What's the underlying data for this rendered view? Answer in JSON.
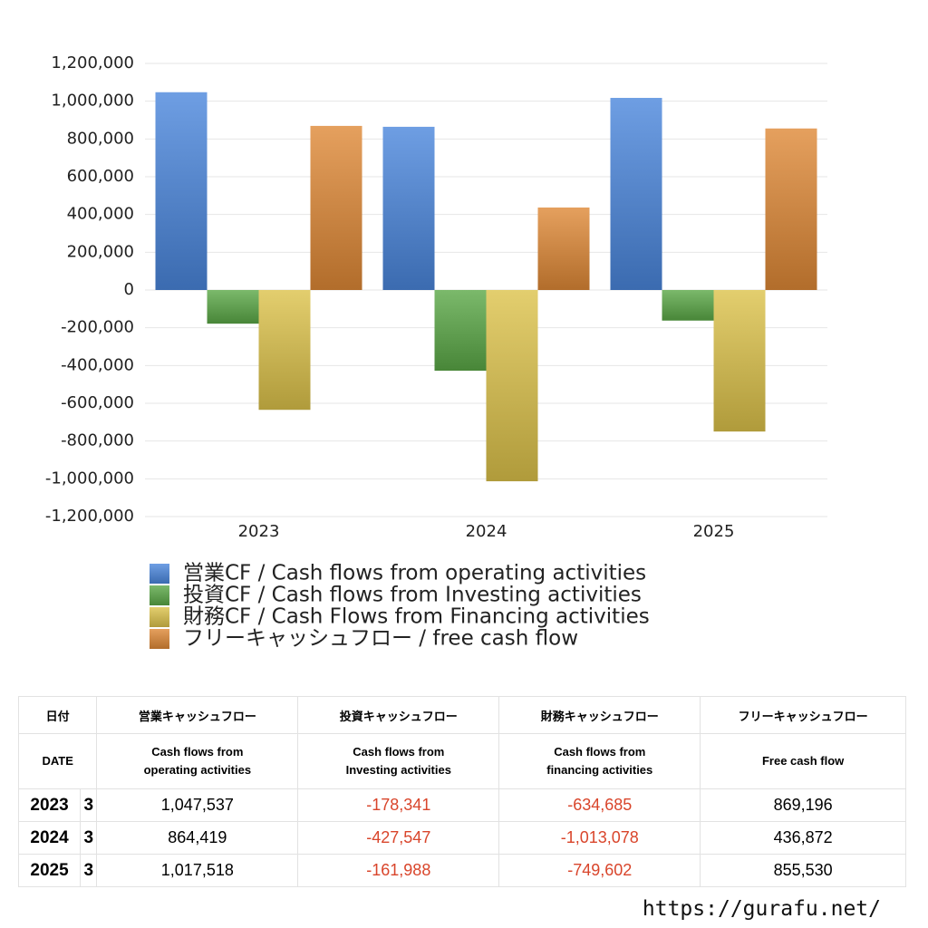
{
  "chart_data": {
    "type": "bar",
    "categories": [
      "2023",
      "2024",
      "2025"
    ],
    "series": [
      {
        "name": "営業CF / Cash flows from operating activities",
        "color": "#4a86dc",
        "values": [
          1047537,
          864419,
          1017518
        ]
      },
      {
        "name": "投資CF / Cash flows from Investing activities",
        "color": "#5aa846",
        "values": [
          -178341,
          -427547,
          -161988
        ]
      },
      {
        "name": "財務CF / Cash Flows from Financing activities",
        "color": "#dcc24a",
        "values": [
          -634685,
          -1013078,
          -749602
        ]
      },
      {
        "name": "フリーキャッシュフロー / free cash flow",
        "color": "#de8836",
        "values": [
          869196,
          436872,
          855530
        ]
      }
    ],
    "ylim": [
      -1200000,
      1200000
    ],
    "yticks": [
      {
        "value": -1200000,
        "label": "-1,200,000"
      },
      {
        "value": -1000000,
        "label": "-1,000,000"
      },
      {
        "value": -800000,
        "label": "-800,000"
      },
      {
        "value": -600000,
        "label": "-600,000"
      },
      {
        "value": -400000,
        "label": "-400,000"
      },
      {
        "value": -200000,
        "label": "-200,000"
      },
      0,
      {
        "value": 200000,
        "label": "200,000"
      },
      {
        "value": 400000,
        "label": "400,000"
      },
      {
        "value": 600000,
        "label": "600,000"
      },
      {
        "value": 800000,
        "label": "800,000"
      },
      {
        "value": 1000000,
        "label": "1,000,000"
      },
      {
        "value": 1200000,
        "label": "1,200,000"
      }
    ],
    "grid": true
  },
  "table": {
    "header_ja": [
      "日付",
      "営業キャッシュフロー",
      "投資キャッシュフロー",
      "財務キャッシュフロー",
      "フリーキャッシュフロー"
    ],
    "header_en": [
      "DATE",
      "Cash flows from operating activities",
      "Cash flows from Investing activities",
      "Cash flows from financing activities",
      "Free cash flow"
    ],
    "rows": [
      [
        "2023",
        "3",
        "1,047,537",
        "-178,341",
        "-634,685",
        "869,196"
      ],
      [
        "2024",
        "3",
        "864,419",
        "-427,547",
        "-1,013,078",
        "436,872"
      ],
      [
        "2025",
        "3",
        "1,017,518",
        "-161,988",
        "-749,602",
        "855,530"
      ]
    ]
  },
  "footer": {
    "url": "https://gurafu.net/"
  }
}
